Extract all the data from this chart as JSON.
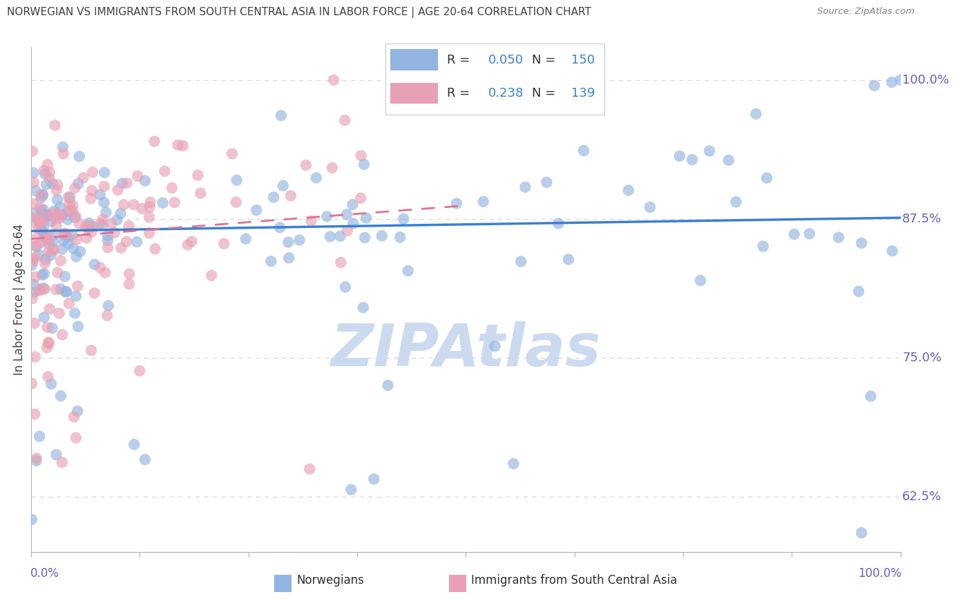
{
  "title": "NORWEGIAN VS IMMIGRANTS FROM SOUTH CENTRAL ASIA IN LABOR FORCE | AGE 20-64 CORRELATION CHART",
  "source_text": "Source: ZipAtlas.com",
  "ylabel": "In Labor Force | Age 20-64",
  "ylabel_right_ticks": [
    "62.5%",
    "75.0%",
    "87.5%",
    "100.0%"
  ],
  "ylabel_right_values": [
    0.625,
    0.75,
    0.875,
    1.0
  ],
  "legend_labels": [
    "Norwegians",
    "Immigrants from South Central Asia"
  ],
  "legend_R_blue": "0.050",
  "legend_N_blue": "150",
  "legend_R_pink": "0.238",
  "legend_N_pink": "139",
  "blue_color": "#92b4e0",
  "pink_color": "#e8a0b4",
  "trend_blue_color": "#3a7fd5",
  "trend_pink_color": "#e07090",
  "watermark_text": "ZIPAtlas",
  "watermark_color": "#ccdaf0",
  "background_color": "#ffffff",
  "grid_color": "#d8d8d8",
  "title_color": "#404040",
  "axis_label_color": "#6060c0",
  "legend_R_color": "#3a7fd5",
  "legend_N_color": "#3a7fd5",
  "xlim": [
    0.0,
    1.0
  ],
  "ylim": [
    0.575,
    1.03
  ]
}
